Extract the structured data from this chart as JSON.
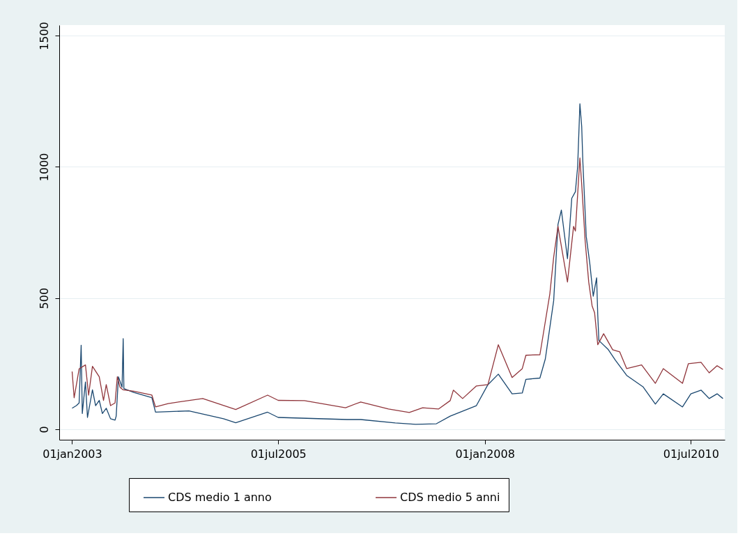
{
  "chart_data": {
    "type": "line",
    "legend": "bottom",
    "grid": "y",
    "line_style": "solid",
    "marker": "none",
    "xlim": [
      "2002-11-05",
      "2010-11-28"
    ],
    "ylim": [
      -40,
      1540
    ],
    "yticks": [
      0,
      500,
      1000,
      1500
    ],
    "xticks": [
      {
        "value": "2003-01-01",
        "label": "01jan2003"
      },
      {
        "value": "2005-07-01",
        "label": "01jul2005"
      },
      {
        "value": "2008-01-01",
        "label": "01jan2008"
      },
      {
        "value": "2010-07-01",
        "label": "01jul2010"
      }
    ],
    "series": [
      {
        "name": "CDS medio 1 anno",
        "color": "#1a476f",
        "x": [
          "2003-01-01",
          "2003-01-20",
          "2003-02-01",
          "2003-02-10",
          "2003-02-15",
          "2003-03-01",
          "2003-03-10",
          "2003-04-01",
          "2003-04-15",
          "2003-05-01",
          "2003-05-15",
          "2003-06-01",
          "2003-06-20",
          "2003-07-10",
          "2003-07-15",
          "2003-07-25",
          "2003-08-10",
          "2003-08-15",
          "2003-08-18",
          "2003-10-01",
          "2003-12-20",
          "2004-01-05",
          "2004-06-01",
          "2004-11-01",
          "2004-12-25",
          "2005-05-15",
          "2005-07-01",
          "2006-05-01",
          "2006-07-01",
          "2006-12-01",
          "2007-03-01",
          "2007-06-01",
          "2007-08-01",
          "2007-11-25",
          "2008-01-15",
          "2008-03-01",
          "2008-05-01",
          "2008-06-15",
          "2008-07-01",
          "2008-09-01",
          "2008-09-25",
          "2008-11-01",
          "2008-11-20",
          "2008-12-05",
          "2009-01-01",
          "2009-01-20",
          "2009-02-05",
          "2009-02-15",
          "2009-02-25",
          "2009-03-05",
          "2009-03-10",
          "2009-03-25",
          "2009-04-10",
          "2009-04-25",
          "2009-05-10",
          "2009-05-15",
          "2009-05-20",
          "2009-07-01",
          "2009-08-01",
          "2009-09-20",
          "2009-12-01",
          "2010-01-25",
          "2010-03-01",
          "2010-05-25",
          "2010-07-01",
          "2010-08-15",
          "2010-09-20",
          "2010-10-25",
          "2010-11-20"
        ],
        "values": [
          80,
          90,
          100,
          320,
          60,
          180,
          45,
          150,
          90,
          110,
          60,
          80,
          40,
          35,
          50,
          200,
          160,
          345,
          155,
          140,
          120,
          65,
          70,
          40,
          25,
          65,
          45,
          37,
          37,
          24,
          19,
          21,
          50,
          90,
          170,
          210,
          135,
          138,
          190,
          195,
          268,
          490,
          780,
          835,
          650,
          880,
          905,
          1000,
          1240,
          1153,
          1020,
          735,
          630,
          507,
          577,
          436,
          338,
          303,
          263,
          205,
          162,
          96,
          135,
          85,
          135,
          149,
          117,
          135,
          117
        ]
      },
      {
        "name": "CDS medio 5 anni",
        "color": "#90353b",
        "x": [
          "2003-01-01",
          "2003-01-10",
          "2003-02-01",
          "2003-03-01",
          "2003-03-15",
          "2003-04-01",
          "2003-05-01",
          "2003-05-20",
          "2003-06-01",
          "2003-06-20",
          "2003-07-10",
          "2003-07-20",
          "2003-08-01",
          "2003-08-15",
          "2003-10-01",
          "2003-12-20",
          "2004-01-05",
          "2004-03-01",
          "2004-08-01",
          "2004-12-25",
          "2005-05-15",
          "2005-07-01",
          "2005-10-25",
          "2006-04-25",
          "2006-07-01",
          "2006-11-01",
          "2007-02-01",
          "2007-04-01",
          "2007-06-10",
          "2007-08-01",
          "2007-08-15",
          "2007-09-25",
          "2007-11-25",
          "2008-01-15",
          "2008-03-01",
          "2008-05-01",
          "2008-06-15",
          "2008-07-01",
          "2008-09-01",
          "2008-10-15",
          "2008-11-01",
          "2008-11-20",
          "2009-01-01",
          "2009-01-28",
          "2009-02-05",
          "2009-02-25",
          "2009-03-05",
          "2009-03-20",
          "2009-04-05",
          "2009-04-20",
          "2009-05-01",
          "2009-05-15",
          "2009-06-10",
          "2009-07-20",
          "2009-08-20",
          "2009-09-20",
          "2009-11-25",
          "2010-01-25",
          "2010-03-01",
          "2010-05-25",
          "2010-06-20",
          "2010-08-15",
          "2010-09-20",
          "2010-10-25",
          "2010-11-20"
        ],
        "values": [
          220,
          120,
          230,
          245,
          130,
          240,
          200,
          110,
          170,
          90,
          100,
          200,
          160,
          150,
          145,
          130,
          85,
          98,
          117,
          75,
          130,
          110,
          109,
          82,
          104,
          77,
          64,
          82,
          77,
          109,
          149,
          117,
          165,
          170,
          322,
          197,
          231,
          282,
          284,
          516,
          656,
          773,
          561,
          773,
          755,
          1034,
          933,
          720,
          561,
          470,
          444,
          322,
          364,
          303,
          295,
          231,
          245,
          175,
          231,
          175,
          250,
          255,
          215,
          242,
          228
        ]
      }
    ]
  }
}
